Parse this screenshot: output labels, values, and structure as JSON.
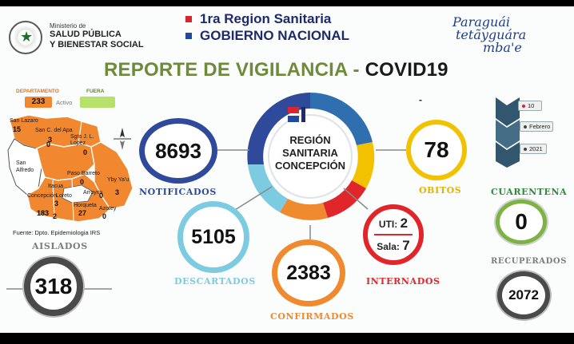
{
  "header": {
    "ministry_small": "Ministerio de",
    "ministry_line1": "SALUD PÚBLICA",
    "ministry_line2": "Y BIENESTAR SOCIAL",
    "region_line1": "1ra Region Sanitaria",
    "region_line2": "GOBIERNO NACIONAL",
    "slogan_line1": "Paraguái",
    "slogan_line2": "tetãyguára",
    "slogan_line3": "mba'e",
    "title_main": "REPORTE DE VIGILANCIA - ",
    "title_covid": "COVID19",
    "dash": "-"
  },
  "map": {
    "legend_departamento": "DEPARTAMENTO",
    "legend_fuera": "FUERA",
    "departamento_value": "233",
    "activo_label": "Activo",
    "districts": [
      {
        "label": "San Lazaro",
        "value": "15"
      },
      {
        "label": "San C. del Apa",
        "value": "0"
      },
      {
        "label": "Sgto J. L. Lopez",
        "value": "0"
      },
      {
        "label": "San Alfredo",
        "value": ""
      },
      {
        "label": "Paso Barreto",
        "value": "0"
      },
      {
        "label": "Itacua",
        "value": ""
      },
      {
        "label": "Loreto",
        "value": "3"
      },
      {
        "label": "Arroyito",
        "value": ""
      },
      {
        "label": "Concepción",
        "value": "183"
      },
      {
        "label": "Horqueta",
        "value": "27"
      },
      {
        "label": "Yby Ya'u",
        "value": "3"
      },
      {
        "label": "Azotey",
        "value": "0"
      }
    ],
    "extra_values": [
      "3",
      "0",
      "2"
    ],
    "fuente": "Fuente: Dpto. Epidemiologia IRS"
  },
  "center": {
    "line1": "REGIÓN",
    "line2": "SANITARIA",
    "line3": "CONCEPCIÓN"
  },
  "stats": {
    "notificados": {
      "label": "NOTIFICADOS",
      "value": "8693"
    },
    "obitos": {
      "label": "OBITOS",
      "value": "78"
    },
    "descartados": {
      "label": "DESCARTADOS",
      "value": "5105"
    },
    "confirmados": {
      "label": "CONFIRMADOS",
      "value": "2383"
    },
    "internados": {
      "label": "INTERNADOS",
      "uti_label": "UTI:",
      "uti_value": "2",
      "sala_label": "Sala:",
      "sala_value": "7"
    },
    "aislados": {
      "label": "AISLADOS",
      "value": "318"
    },
    "cuarentena": {
      "label": "CUARENTENA",
      "value": "0"
    },
    "recuperados": {
      "label": "RECUPERADOS",
      "value": "2072"
    }
  },
  "date": {
    "day": "10",
    "month": "Febrero",
    "year": "2021"
  },
  "colors": {
    "notificados": "#2f4a9a",
    "obitos": "#f2c200",
    "descartados": "#7ccbe0",
    "confirmados": "#ef8a2e",
    "internados": "#e0262b",
    "cuarentena": "#7cb342",
    "neutral": "#7d7d7d",
    "map_fill": "#f1872f",
    "title_green": "#6e8a3a"
  }
}
